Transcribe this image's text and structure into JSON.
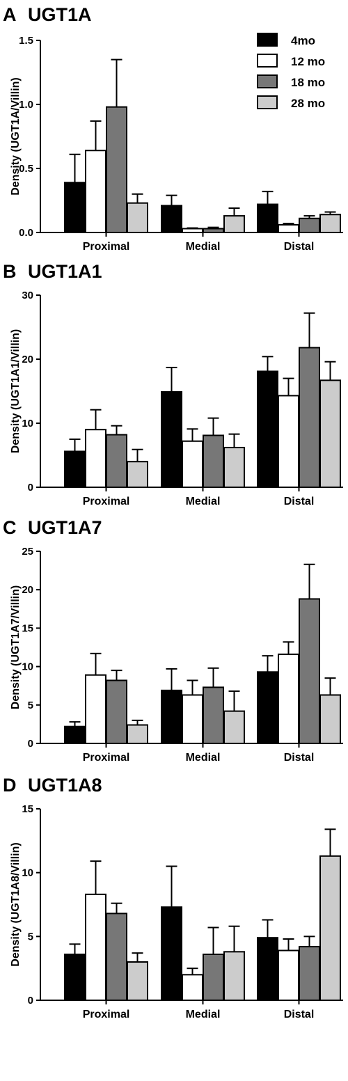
{
  "chart_data": [
    {
      "type": "bar",
      "letter": "A",
      "title": "UGT1A",
      "ylabel": "Density (UGT1A/Villin)",
      "categories": [
        "Proximal",
        "Medial",
        "Distal"
      ],
      "ylim": [
        0,
        1.5
      ],
      "yticks": [
        "0.0",
        "0.5",
        "1.0",
        "1.5"
      ],
      "series": [
        {
          "name": "4mo",
          "color": "#000000",
          "values": [
            0.39,
            0.21,
            0.22
          ],
          "errors": [
            0.22,
            0.08,
            0.1
          ]
        },
        {
          "name": "12 mo",
          "color": "#ffffff",
          "values": [
            0.64,
            0.03,
            0.06
          ],
          "errors": [
            0.23,
            0.005,
            0.01
          ]
        },
        {
          "name": "18 mo",
          "color": "#777777",
          "values": [
            0.98,
            0.03,
            0.11
          ],
          "errors": [
            0.37,
            0.01,
            0.02
          ]
        },
        {
          "name": "28 mo",
          "color": "#cccccc",
          "values": [
            0.23,
            0.13,
            0.14
          ],
          "errors": [
            0.07,
            0.06,
            0.02
          ]
        }
      ],
      "legend": "top-right"
    },
    {
      "type": "bar",
      "letter": "B",
      "title": "UGT1A1",
      "ylabel": "Density (UGT1A1/Villin)",
      "categories": [
        "Proximal",
        "Medial",
        "Distal"
      ],
      "ylim": [
        0,
        30
      ],
      "yticks": [
        "0",
        "10",
        "20",
        "30"
      ],
      "series": [
        {
          "name": "4mo",
          "color": "#000000",
          "values": [
            5.6,
            14.9,
            18.1
          ],
          "errors": [
            1.9,
            3.8,
            2.3
          ]
        },
        {
          "name": "12 mo",
          "color": "#ffffff",
          "values": [
            9.0,
            7.2,
            14.3
          ],
          "errors": [
            3.1,
            1.9,
            2.7
          ]
        },
        {
          "name": "18 mo",
          "color": "#777777",
          "values": [
            8.2,
            8.1,
            21.8
          ],
          "errors": [
            1.4,
            2.7,
            5.4
          ]
        },
        {
          "name": "28 mo",
          "color": "#cccccc",
          "values": [
            4.0,
            6.2,
            16.7
          ],
          "errors": [
            1.9,
            2.1,
            2.9
          ]
        }
      ]
    },
    {
      "type": "bar",
      "letter": "C",
      "title": "UGT1A7",
      "ylabel": "Density (UGT1A7/Villin)",
      "categories": [
        "Proximal",
        "Medial",
        "Distal"
      ],
      "ylim": [
        0,
        25
      ],
      "yticks": [
        "0",
        "5",
        "10",
        "15",
        "20",
        "25"
      ],
      "series": [
        {
          "name": "4mo",
          "color": "#000000",
          "values": [
            2.2,
            6.9,
            9.3
          ],
          "errors": [
            0.6,
            2.8,
            2.1
          ]
        },
        {
          "name": "12 mo",
          "color": "#ffffff",
          "values": [
            8.9,
            6.3,
            11.6
          ],
          "errors": [
            2.8,
            1.9,
            1.6
          ]
        },
        {
          "name": "18 mo",
          "color": "#777777",
          "values": [
            8.2,
            7.3,
            18.8
          ],
          "errors": [
            1.3,
            2.5,
            4.5
          ]
        },
        {
          "name": "28 mo",
          "color": "#cccccc",
          "values": [
            2.4,
            4.2,
            6.3
          ],
          "errors": [
            0.6,
            2.6,
            2.2
          ]
        }
      ]
    },
    {
      "type": "bar",
      "letter": "D",
      "title": "UGT1A8",
      "ylabel": "Density (UGT1A8/Villin)",
      "categories": [
        "Proximal",
        "Medial",
        "Distal"
      ],
      "ylim": [
        0,
        15
      ],
      "yticks": [
        "0",
        "5",
        "10",
        "15"
      ],
      "series": [
        {
          "name": "4mo",
          "color": "#000000",
          "values": [
            3.6,
            7.3,
            4.9
          ],
          "errors": [
            0.8,
            3.2,
            1.4
          ]
        },
        {
          "name": "12 mo",
          "color": "#ffffff",
          "values": [
            8.3,
            2.0,
            3.9
          ],
          "errors": [
            2.6,
            0.5,
            0.9
          ]
        },
        {
          "name": "18 mo",
          "color": "#777777",
          "values": [
            6.8,
            3.6,
            4.2
          ],
          "errors": [
            0.8,
            2.1,
            0.8
          ]
        },
        {
          "name": "28 mo",
          "color": "#cccccc",
          "values": [
            3.0,
            3.8,
            11.3
          ],
          "errors": [
            0.7,
            2.0,
            2.1
          ]
        }
      ]
    }
  ]
}
